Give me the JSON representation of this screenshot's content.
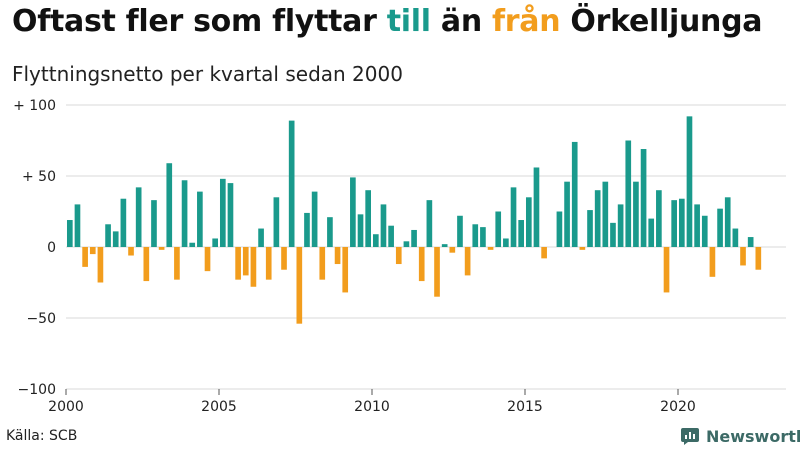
{
  "title": {
    "part1": "Oftast fler som flyttar ",
    "in_word": "till",
    "part2": " än ",
    "out_word": "från",
    "part3": " Örkelljunga"
  },
  "subtitle": "Flyttningsnetto per kvartal sedan 2000",
  "source": "Källa: SCB",
  "brand": {
    "name": "Newsworthy",
    "icon": "chart-bubble-icon"
  },
  "colors": {
    "positive": "#1a9a8c",
    "negative": "#f29d1d",
    "grid": "#d9d9d9",
    "brand": "#3c6a66"
  },
  "chart_data": {
    "type": "bar",
    "title": "Flyttningsnetto per kvartal sedan 2000",
    "x_start": "2000 Q1",
    "x_ticks": [
      "2000",
      "2005",
      "2010",
      "2015",
      "2020"
    ],
    "y_ticks": [
      "+ 100",
      "+ 50",
      "0",
      "−50",
      "−100"
    ],
    "ylim": [
      -100,
      100
    ],
    "grid": true,
    "values": [
      19,
      30,
      -14,
      -5,
      -25,
      16,
      11,
      34,
      -6,
      42,
      -24,
      33,
      -2,
      59,
      -23,
      47,
      3,
      39,
      -17,
      6,
      48,
      45,
      -23,
      -20,
      -28,
      13,
      -23,
      35,
      -16,
      89,
      -54,
      24,
      39,
      -23,
      21,
      -12,
      -32,
      49,
      23,
      40,
      9,
      30,
      15,
      -12,
      4,
      12,
      -24,
      33,
      -35,
      2,
      -4,
      22,
      -20,
      16,
      14,
      -2,
      25,
      6,
      42,
      19,
      35,
      56,
      -8,
      0,
      25,
      46,
      74,
      -2,
      26,
      40,
      46,
      17,
      30,
      75,
      46,
      69,
      20,
      40,
      -32,
      33,
      34,
      92,
      30,
      22,
      -21,
      27,
      35,
      13,
      -13,
      7,
      -16
    ]
  }
}
